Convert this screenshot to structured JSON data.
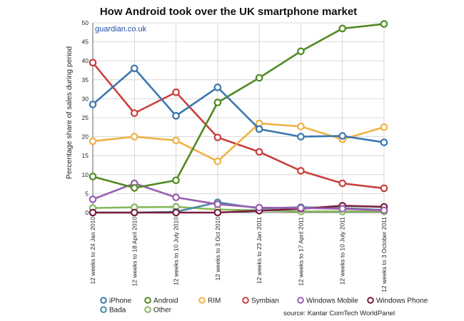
{
  "chart_data": {
    "type": "line",
    "title": "How Android took over the UK smartphone market",
    "credit": "guardian.co.uk",
    "ylabel": "Percentage share of sales during period",
    "xlabel": "",
    "ylim": [
      0,
      50
    ],
    "yticks": [
      0,
      5,
      10,
      15,
      20,
      25,
      30,
      35,
      40,
      45,
      50
    ],
    "grid": true,
    "legend_position": "bottom",
    "categories": [
      "12 weeks to 24 Jan 2010",
      "12 weeks to 18 April 2010",
      "12 weeks to 10 July 2010",
      "12 weeks to 3 Oct 2010",
      "12 weeks to 23 Jan 2011",
      "12 weeks to 17 April 2011",
      "12 weeks to 10 July 2011",
      "12 weeks to 3 October 2011"
    ],
    "series": [
      {
        "name": "iPhone",
        "color": "#3b78b0",
        "values": [
          28.5,
          38,
          25.5,
          33,
          22,
          20,
          20.2,
          18.5
        ]
      },
      {
        "name": "Android",
        "color": "#4f8a22",
        "values": [
          9.5,
          6.5,
          8.5,
          29,
          35.5,
          42.5,
          48.5,
          49.7
        ]
      },
      {
        "name": "RIM",
        "color": "#efb243",
        "values": [
          18.8,
          20,
          19,
          13.5,
          23.5,
          22.7,
          19.3,
          22.5
        ]
      },
      {
        "name": "Symbian",
        "color": "#c9413f",
        "values": [
          39.5,
          26.2,
          31.7,
          19.8,
          16,
          11,
          7.7,
          6.4
        ]
      },
      {
        "name": "Windows Mobile",
        "color": "#9a5fb1",
        "values": [
          3.5,
          7.7,
          4,
          2.2,
          1.3,
          1.2,
          1,
          0.6
        ]
      },
      {
        "name": "Windows Phone",
        "color": "#7a1f3c",
        "values": [
          0,
          0,
          0,
          0,
          0.5,
          1,
          1.8,
          1.5
        ]
      },
      {
        "name": "Bada",
        "color": "#4a8aa6",
        "values": [
          0,
          0,
          0.2,
          2.7,
          1.1,
          1.4,
          1.2,
          0.7
        ]
      },
      {
        "name": "Other",
        "color": "#86b85a",
        "values": [
          1.2,
          1.4,
          1.5,
          0.8,
          0.6,
          0.3,
          0.3,
          0.3
        ]
      }
    ],
    "source": "source: Kantar ComTech WorldPanel"
  }
}
